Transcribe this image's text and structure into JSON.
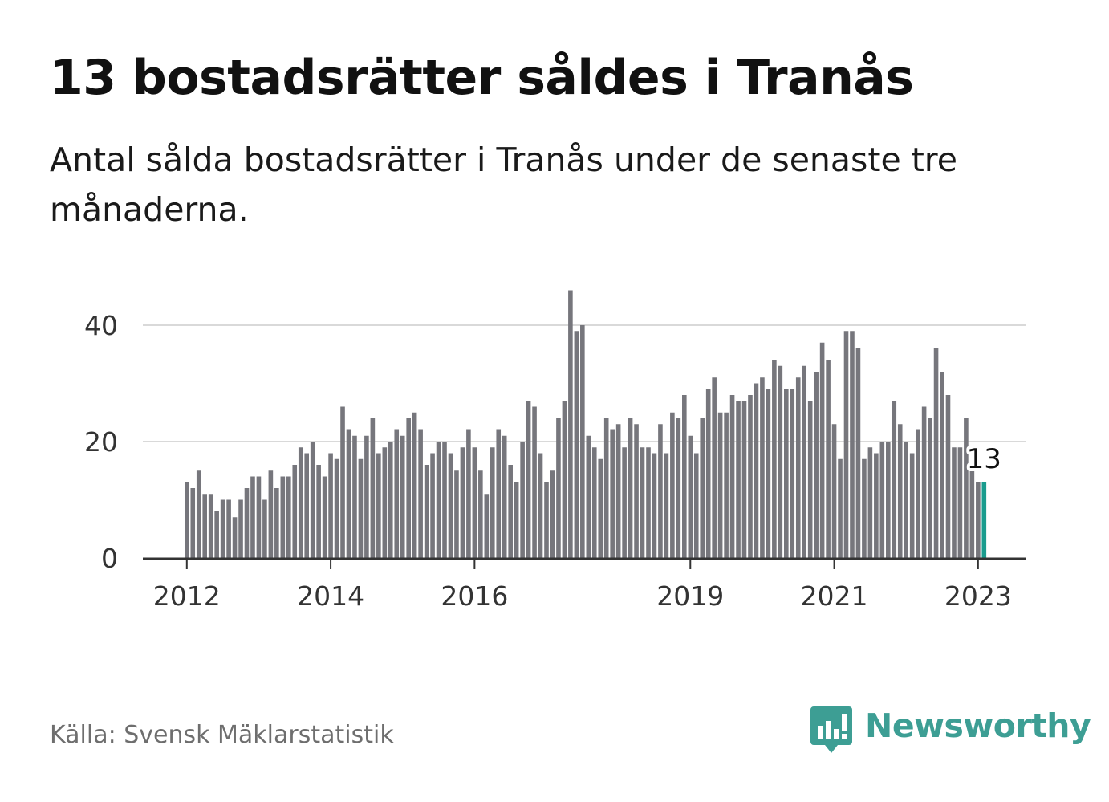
{
  "title": "13 bostadsrätter såldes i Tranås",
  "subtitle": "Antal sålda bostadsrätter i Tranås under de senaste tre månaderna.",
  "source": "Källa: Svensk Mäklarstatistik",
  "brand": {
    "name": "Newsworthy",
    "icon": "newsworthy-logo-icon"
  },
  "colors": {
    "bar": "#76767c",
    "highlight": "#1a9c8e",
    "grid": "#d9d9d9",
    "axis": "#333333",
    "brand": "#3d9e94"
  },
  "chart_data": {
    "type": "bar",
    "title": "13 bostadsrätter såldes i Tranås",
    "xlabel": "",
    "ylabel": "",
    "ylim": [
      0,
      46
    ],
    "yticks": [
      0,
      20,
      40
    ],
    "grid": true,
    "start_period": "2012-01",
    "x_ticks": [
      {
        "label": "2012",
        "index": 0
      },
      {
        "label": "2014",
        "index": 24
      },
      {
        "label": "2016",
        "index": 48
      },
      {
        "label": "2019",
        "index": 84
      },
      {
        "label": "2021",
        "index": 108
      },
      {
        "label": "2023",
        "index": 132
      }
    ],
    "highlight": {
      "index": 133,
      "label": "13"
    },
    "values": [
      13,
      12,
      15,
      11,
      11,
      8,
      10,
      10,
      7,
      10,
      12,
      14,
      14,
      10,
      15,
      12,
      14,
      14,
      16,
      19,
      18,
      20,
      16,
      14,
      18,
      17,
      26,
      22,
      21,
      17,
      21,
      24,
      18,
      19,
      20,
      22,
      21,
      24,
      25,
      22,
      16,
      18,
      20,
      20,
      18,
      15,
      19,
      22,
      19,
      15,
      11,
      19,
      22,
      21,
      16,
      13,
      20,
      27,
      26,
      18,
      13,
      15,
      24,
      27,
      46,
      39,
      40,
      21,
      19,
      17,
      24,
      22,
      23,
      19,
      24,
      23,
      19,
      19,
      18,
      23,
      18,
      25,
      24,
      28,
      21,
      18,
      24,
      29,
      31,
      25,
      25,
      28,
      27,
      27,
      28,
      30,
      31,
      29,
      34,
      33,
      29,
      29,
      31,
      33,
      27,
      32,
      37,
      34,
      23,
      17,
      39,
      39,
      36,
      17,
      19,
      18,
      20,
      20,
      27,
      23,
      20,
      18,
      22,
      26,
      24,
      36,
      32,
      28,
      19,
      19,
      24,
      15,
      13,
      13
    ]
  }
}
